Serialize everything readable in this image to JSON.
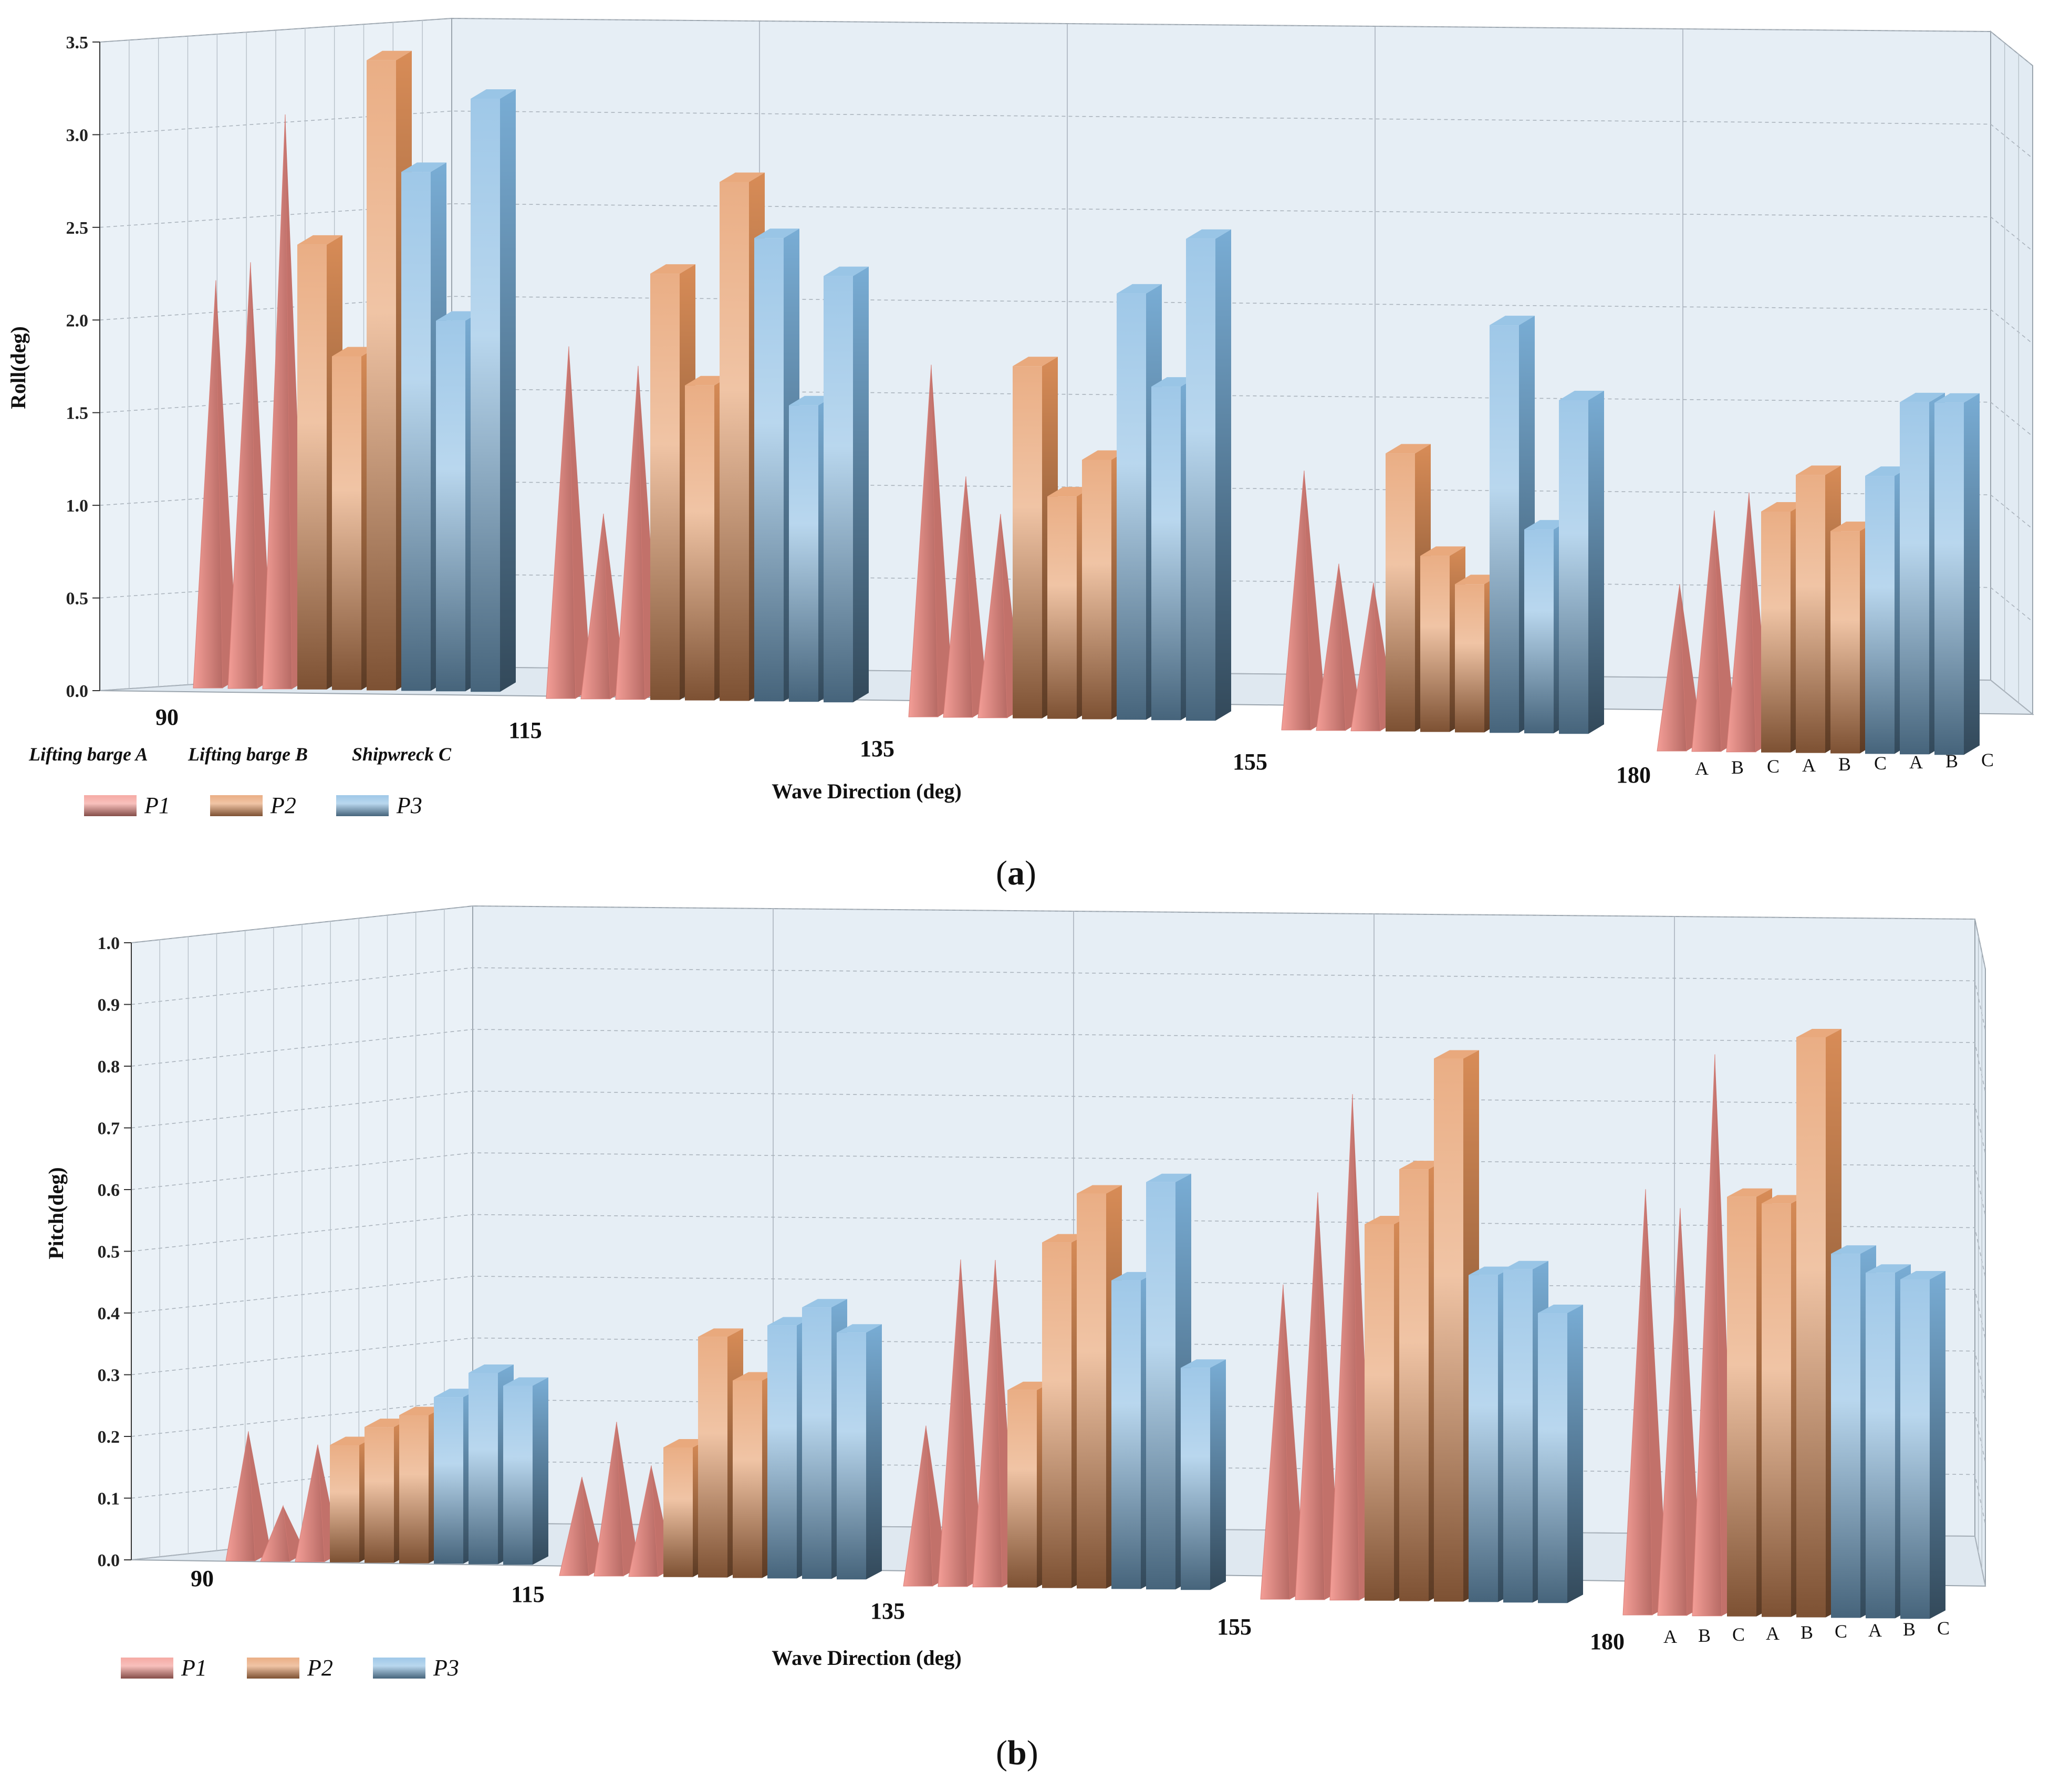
{
  "chart_data": [
    {
      "id": "a",
      "type": "bar3d",
      "caption": "(a)",
      "caption_letter": "a",
      "ylabel": "Roll(deg)",
      "xlabel": "Wave Direction (deg)",
      "ylim": [
        0,
        3.5
      ],
      "yticks": [
        "0.0",
        "0.5",
        "1.0",
        "1.5",
        "2.0",
        "2.5",
        "3.0",
        "3.5"
      ],
      "categories": [
        "90",
        "115",
        "135",
        "155",
        "180"
      ],
      "sub_categories": [
        "A",
        "B",
        "C"
      ],
      "group_labels": [
        "Lifting barge A",
        "Lifting barge B",
        "Shipwreck C"
      ],
      "series": [
        {
          "name": "P1",
          "shape": "cone",
          "color": "#f28d85",
          "values": [
            [
              2.2,
              2.3,
              3.1
            ],
            [
              1.9,
              1.0,
              1.8
            ],
            [
              1.9,
              1.3,
              1.1
            ],
            [
              1.4,
              0.9,
              0.8
            ],
            [
              0.9,
              1.3,
              1.4
            ]
          ]
        },
        {
          "name": "P2",
          "shape": "bar",
          "color": "#e3935c",
          "values": [
            [
              2.4,
              1.8,
              3.4
            ],
            [
              2.3,
              1.7,
              2.8
            ],
            [
              1.9,
              1.2,
              1.4
            ],
            [
              1.5,
              0.95,
              0.8
            ],
            [
              1.3,
              1.5,
              1.2
            ]
          ]
        },
        {
          "name": "P3",
          "shape": "bar",
          "color": "#7fb6e0",
          "values": [
            [
              2.8,
              2.0,
              3.2
            ],
            [
              2.5,
              1.6,
              2.3
            ],
            [
              2.3,
              1.8,
              2.6
            ],
            [
              2.2,
              1.1,
              1.8
            ],
            [
              1.5,
              1.9,
              1.9
            ]
          ]
        }
      ],
      "legend": [
        "P1",
        "P2",
        "P3"
      ]
    },
    {
      "id": "b",
      "type": "bar3d",
      "caption": "(b)",
      "caption_letter": "b",
      "ylabel": "Pitch(deg)",
      "xlabel": "Wave Direction (deg)",
      "ylim": [
        0,
        1.0
      ],
      "yticks": [
        "0.0",
        "0.1",
        "0.2",
        "0.3",
        "0.4",
        "0.5",
        "0.6",
        "0.7",
        "0.8",
        "0.9",
        "1.0"
      ],
      "categories": [
        "90",
        "115",
        "135",
        "155",
        "180"
      ],
      "sub_categories": [
        "A",
        "B",
        "C"
      ],
      "series": [
        {
          "name": "P1",
          "shape": "cone",
          "color": "#f28d85",
          "values": [
            [
              0.21,
              0.09,
              0.19
            ],
            [
              0.16,
              0.25,
              0.18
            ],
            [
              0.26,
              0.53,
              0.53
            ],
            [
              0.51,
              0.66,
              0.82
            ],
            [
              0.69,
              0.66,
              0.91
            ]
          ]
        },
        {
          "name": "P2",
          "shape": "bar",
          "color": "#e3935c",
          "values": [
            [
              0.19,
              0.22,
              0.24
            ],
            [
              0.21,
              0.39,
              0.32
            ],
            [
              0.32,
              0.56,
              0.64
            ],
            [
              0.61,
              0.7,
              0.88
            ],
            [
              0.68,
              0.67,
              0.94
            ]
          ]
        },
        {
          "name": "P3",
          "shape": "bar",
          "color": "#7fb6e0",
          "values": [
            [
              0.27,
              0.31,
              0.29
            ],
            [
              0.41,
              0.44,
              0.4
            ],
            [
              0.5,
              0.66,
              0.36
            ],
            [
              0.53,
              0.54,
              0.47
            ],
            [
              0.59,
              0.56,
              0.55
            ]
          ]
        }
      ],
      "legend": [
        "P1",
        "P2",
        "P3"
      ]
    }
  ]
}
